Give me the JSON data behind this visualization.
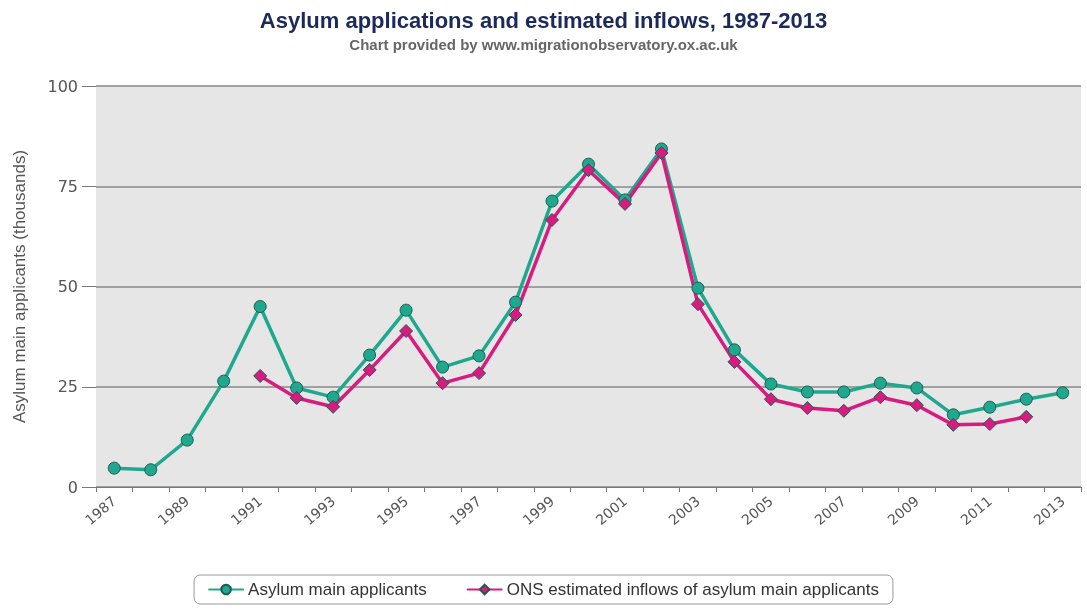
{
  "chart_data": {
    "type": "line",
    "title": "Asylum applications and estimated inflows, 1987-2013",
    "subtitle": "Chart provided by www.migrationobservatory.ox.ac.uk",
    "ylabel": "Asylum main applicants (thousands)",
    "categories": [
      "1987",
      null,
      "1989",
      null,
      "1991",
      null,
      "1993",
      null,
      "1995",
      null,
      "1997",
      null,
      "1999",
      null,
      "2001",
      null,
      "2003",
      null,
      "2005",
      null,
      "2007",
      null,
      "2009",
      null,
      "2011",
      null,
      "2013"
    ],
    "series": [
      {
        "name": "Asylum main applicants",
        "color": "#1fa88e",
        "marker": "circle",
        "values": [
          4.7,
          4.3,
          11.7,
          26.4,
          45,
          24.7,
          22.4,
          32.9,
          44.1,
          29.9,
          32.7,
          46.1,
          71.3,
          80.5,
          71.6,
          84.3,
          49.6,
          34.2,
          25.7,
          23.7,
          23.7,
          25.9,
          24.7,
          18,
          19.9,
          21.9,
          23.5
        ]
      },
      {
        "name": "ONS estimated inflows of asylum main applicants",
        "color": "#d81b7f",
        "marker": "diamond",
        "values": [
          null,
          null,
          null,
          null,
          27.7,
          22.2,
          20,
          29.2,
          38.9,
          25.9,
          28.4,
          42.9,
          66.6,
          79,
          70.6,
          83.3,
          45.6,
          31.2,
          21.9,
          19.7,
          19,
          22.4,
          20.4,
          15.5,
          15.7,
          17.5,
          null
        ]
      }
    ],
    "ylim": [
      0,
      100
    ],
    "yticks": [
      0,
      25,
      50,
      75,
      100
    ],
    "grid": "y",
    "legend": "bottom",
    "line_style": "solid"
  }
}
